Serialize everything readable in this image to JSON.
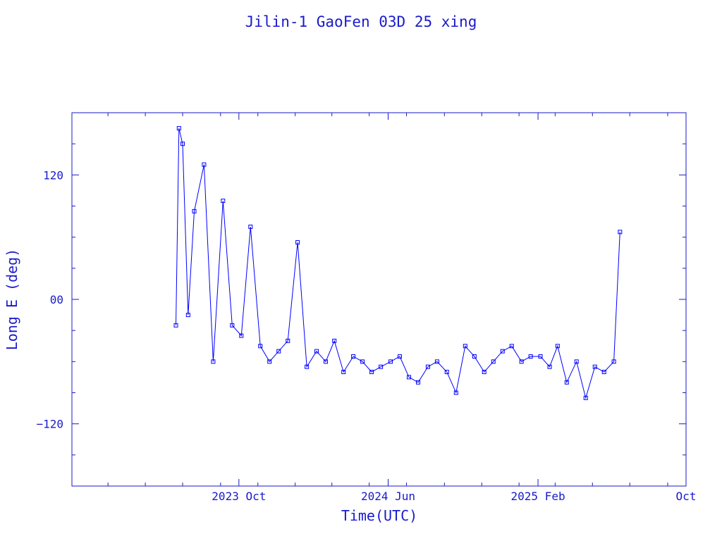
{
  "chart_data": {
    "type": "scatter",
    "title": "Jilin-1 GaoFen 03D 25 xing",
    "xlabel": "Time(UTC)",
    "ylabel": "Long E (deg)",
    "x_tick_labels": [
      "2023 Oct",
      "2024 Jun",
      "2025 Feb",
      "Oct"
    ],
    "x_ticks": [
      "2023-10-01",
      "2024-06-01",
      "2025-02-01",
      "2025-10-01"
    ],
    "xlim": [
      "2023-01-01",
      "2025-10-01"
    ],
    "y_tick_labels": [
      "−120",
      "00",
      "120"
    ],
    "y_ticks": [
      -120,
      0,
      120
    ],
    "ylim": [
      -180,
      180
    ],
    "grid": false,
    "series": [
      {
        "color": "#0000ff",
        "marker": "square",
        "connected": true,
        "x": [
          "2023-06-20",
          "2023-06-25",
          "2023-07-01",
          "2023-07-10",
          "2023-07-20",
          "2023-08-05",
          "2023-08-20",
          "2023-09-05",
          "2023-09-20",
          "2023-10-05",
          "2023-10-20",
          "2023-11-05",
          "2023-11-20",
          "2023-12-05",
          "2023-12-20",
          "2024-01-05",
          "2024-01-20",
          "2024-02-05",
          "2024-02-20",
          "2024-03-05",
          "2024-03-20",
          "2024-04-05",
          "2024-04-20",
          "2024-05-05",
          "2024-05-20",
          "2024-06-05",
          "2024-06-20",
          "2024-07-05",
          "2024-07-20",
          "2024-08-05",
          "2024-08-20",
          "2024-09-05",
          "2024-09-20",
          "2024-10-05",
          "2024-10-20",
          "2024-11-05",
          "2024-11-20",
          "2024-12-05",
          "2024-12-20",
          "2025-01-05",
          "2025-01-20",
          "2025-02-05",
          "2025-02-20",
          "2025-03-05",
          "2025-03-20",
          "2025-04-05",
          "2025-04-20",
          "2025-05-05",
          "2025-05-20",
          "2025-06-05",
          "2025-06-15"
        ],
        "y": [
          -25,
          165,
          150,
          -15,
          85,
          130,
          -60,
          95,
          -25,
          -35,
          70,
          -45,
          -60,
          -50,
          -40,
          55,
          -65,
          -50,
          -60,
          -40,
          -70,
          -55,
          -60,
          -70,
          -65,
          -60,
          -55,
          -75,
          -80,
          -65,
          -60,
          -70,
          -90,
          -45,
          -55,
          -70,
          -60,
          -50,
          -45,
          -60,
          -55,
          -55,
          -65,
          -45,
          -80,
          -60,
          -95,
          -65,
          -70,
          -60,
          65
        ]
      }
    ]
  }
}
